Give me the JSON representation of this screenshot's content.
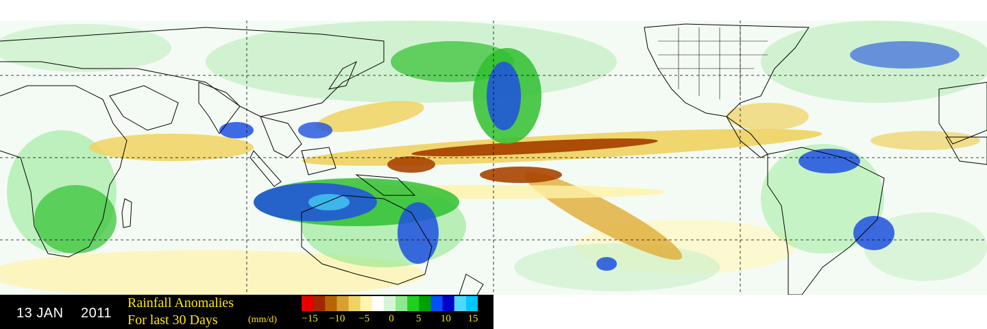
{
  "date": {
    "day_month": "13 JAN",
    "year": "2011"
  },
  "legend": {
    "title_line1": "Rainfall Anomalies",
    "title_line2": "For last 30 Days",
    "units": "(mm/d)",
    "ticks": [
      "−15",
      "−10",
      "−5",
      "0",
      "5",
      "10",
      "15"
    ],
    "colors": [
      "#e60000",
      "#a02800",
      "#b86400",
      "#d8a030",
      "#f0d260",
      "#fff5b0",
      "#ffffff",
      "#d6f5d6",
      "#8ee88e",
      "#20d020",
      "#00a000",
      "#0050ff",
      "#0000c8",
      "#50d8ff",
      "#00c8ff"
    ]
  },
  "map_colors": {
    "strong_dry": "#a84400",
    "dry": "#e0b040",
    "light_dry": "#fff2a8",
    "light_wet": "#c8f0c8",
    "wet": "#30c030",
    "very_wet": "#1e50e0",
    "extreme_wet": "#40c0f0",
    "coast": "#000000"
  }
}
